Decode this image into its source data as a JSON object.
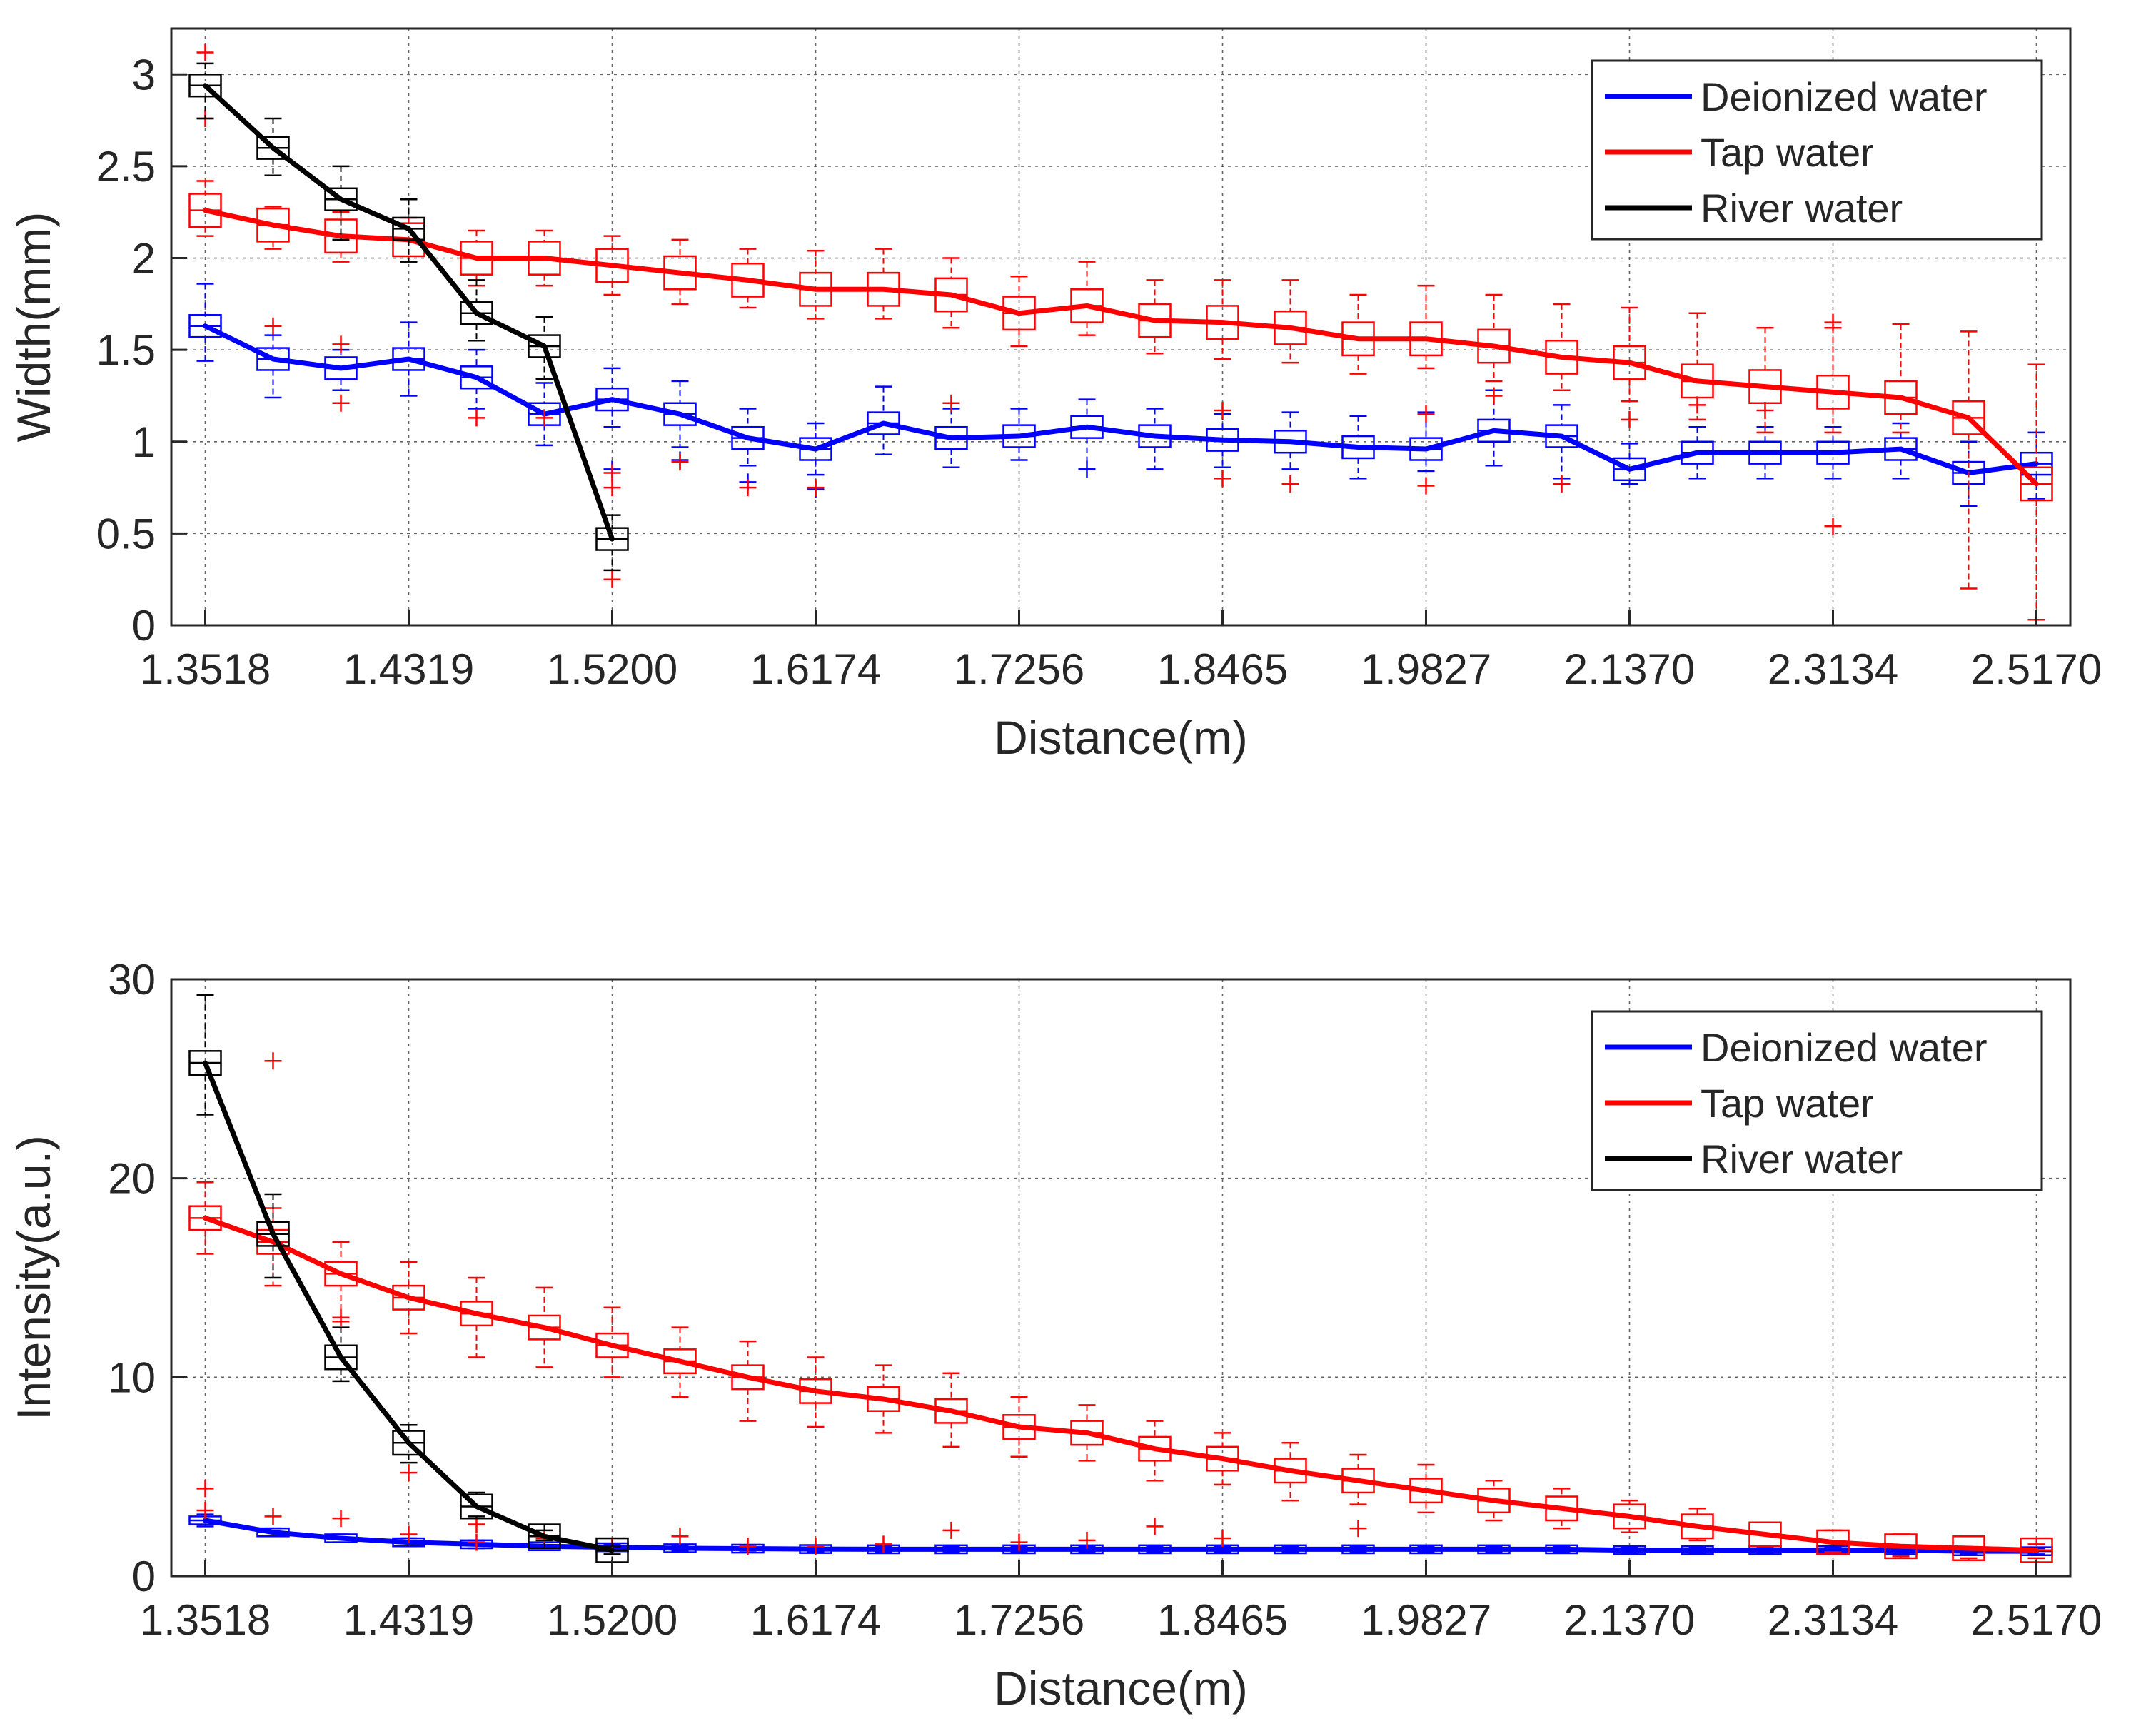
{
  "colors": {
    "deionized": "#0000ff",
    "tap": "#ff0000",
    "river": "#000000",
    "grid": "#262626",
    "axis": "#262626"
  },
  "chart_data": [
    {
      "type": "line",
      "title": "",
      "xlabel": "Distance(m)",
      "ylabel": "Width(mm)",
      "ylim": [
        0,
        3.25
      ],
      "yticks": [
        0,
        0.5,
        1,
        1.5,
        2,
        2.5,
        3
      ],
      "ytick_labels": [
        "0",
        "0.5",
        "1",
        "1.5",
        "2",
        "2.5",
        "3"
      ],
      "xlim_index": [
        -0.5,
        27.5
      ],
      "xtick_positions": [
        0,
        3,
        6,
        9,
        12,
        15,
        18,
        21,
        24,
        27
      ],
      "xtick_labels": [
        "1.3518",
        "1.4319",
        "1.5200",
        "1.6174",
        "1.7256",
        "1.8465",
        "1.9827",
        "2.1370",
        "2.3134",
        "2.5170"
      ],
      "grid": true,
      "legend": {
        "position": "top-right",
        "entries": [
          "Deionized water",
          "Tap water",
          "River water"
        ]
      },
      "series": [
        {
          "name": "Deionized water",
          "color_key": "deionized",
          "x_index": [
            0,
            1,
            2,
            3,
            4,
            5,
            6,
            7,
            8,
            9,
            10,
            11,
            12,
            13,
            14,
            15,
            16,
            17,
            18,
            19,
            20,
            21,
            22,
            23,
            24,
            25,
            26,
            27
          ],
          "values": [
            1.63,
            1.45,
            1.4,
            1.45,
            1.35,
            1.15,
            1.23,
            1.15,
            1.02,
            0.96,
            1.1,
            1.02,
            1.03,
            1.08,
            1.03,
            1.01,
            1.0,
            0.97,
            0.96,
            1.06,
            1.03,
            0.85,
            0.94,
            0.94,
            0.94,
            0.96,
            0.83,
            0.88
          ],
          "box_half_height": 0.06,
          "whisker_low": [
            1.44,
            1.24,
            1.28,
            1.25,
            1.18,
            0.98,
            1.08,
            0.97,
            0.87,
            0.82,
            0.93,
            0.86,
            0.9,
            0.85,
            0.85,
            0.86,
            0.85,
            0.8,
            0.84,
            0.87,
            0.8,
            0.77,
            0.8,
            0.8,
            0.8,
            0.8,
            0.65,
            0.69
          ],
          "whisker_high": [
            1.86,
            1.58,
            1.5,
            1.65,
            1.5,
            1.32,
            1.4,
            1.33,
            1.18,
            1.1,
            1.3,
            1.18,
            1.18,
            1.23,
            1.18,
            1.15,
            1.16,
            1.14,
            1.16,
            1.28,
            1.2,
            0.99,
            1.08,
            1.08,
            1.08,
            1.1,
            1.0,
            1.05
          ],
          "outliers": [
            [
              6,
              0.85
            ],
            [
              7,
              0.9
            ],
            [
              8,
              0.78
            ],
            [
              9,
              0.74
            ],
            [
              13,
              0.85
            ]
          ]
        },
        {
          "name": "Tap water",
          "color_key": "tap",
          "x_index": [
            0,
            1,
            2,
            3,
            4,
            5,
            6,
            7,
            8,
            9,
            10,
            11,
            12,
            13,
            14,
            15,
            16,
            17,
            18,
            19,
            20,
            21,
            22,
            23,
            24,
            25,
            26,
            27
          ],
          "values": [
            2.26,
            2.18,
            2.12,
            2.1,
            2.0,
            2.0,
            1.96,
            1.92,
            1.88,
            1.83,
            1.83,
            1.8,
            1.7,
            1.74,
            1.66,
            1.65,
            1.62,
            1.56,
            1.56,
            1.52,
            1.46,
            1.43,
            1.33,
            1.3,
            1.27,
            1.24,
            1.13,
            0.77
          ],
          "box_half_height": 0.09,
          "whisker_low": [
            2.12,
            2.05,
            1.98,
            1.98,
            1.85,
            1.85,
            1.8,
            1.75,
            1.73,
            1.67,
            1.67,
            1.62,
            1.52,
            1.58,
            1.48,
            1.45,
            1.43,
            1.37,
            1.4,
            1.33,
            1.28,
            1.22,
            1.12,
            1.05,
            1.05,
            1.05,
            0.2,
            0.03
          ],
          "whisker_high": [
            2.42,
            2.28,
            2.25,
            2.22,
            2.15,
            2.15,
            2.12,
            2.1,
            2.05,
            2.04,
            2.05,
            2.0,
            1.9,
            1.98,
            1.88,
            1.88,
            1.88,
            1.8,
            1.85,
            1.8,
            1.75,
            1.73,
            1.7,
            1.62,
            1.62,
            1.64,
            1.6,
            1.42
          ],
          "outliers": [
            [
              0,
              3.12
            ],
            [
              0,
              2.76
            ],
            [
              1,
              1.63
            ],
            [
              2,
              1.53
            ],
            [
              2,
              1.21
            ],
            [
              4,
              1.13
            ],
            [
              5,
              1.13
            ],
            [
              6,
              0.83
            ],
            [
              6,
              0.75
            ],
            [
              6,
              0.25
            ],
            [
              7,
              0.89
            ],
            [
              8,
              0.75
            ],
            [
              9,
              0.75
            ],
            [
              11,
              1.21
            ],
            [
              15,
              1.17
            ],
            [
              15,
              0.8
            ],
            [
              16,
              0.77
            ],
            [
              18,
              0.76
            ],
            [
              18,
              1.15
            ],
            [
              19,
              1.25
            ],
            [
              20,
              0.77
            ],
            [
              21,
              1.12
            ],
            [
              22,
              1.2
            ],
            [
              23,
              1.17
            ],
            [
              24,
              1.65
            ],
            [
              24,
              0.54
            ]
          ]
        },
        {
          "name": "River water",
          "color_key": "river",
          "x_index": [
            0,
            1,
            2,
            3,
            4,
            5,
            6
          ],
          "values": [
            2.94,
            2.6,
            2.32,
            2.16,
            1.7,
            1.52,
            0.47
          ],
          "box_half_height": 0.06,
          "whisker_low": [
            2.76,
            2.45,
            2.1,
            1.98,
            1.55,
            1.34,
            0.3
          ],
          "whisker_high": [
            3.06,
            2.76,
            2.5,
            2.32,
            1.88,
            1.68,
            0.6
          ],
          "outliers": []
        }
      ]
    },
    {
      "type": "line",
      "title": "",
      "xlabel": "Distance(m)",
      "ylabel": "Intensity(a.u.)",
      "ylim": [
        0,
        30
      ],
      "yticks": [
        0,
        10,
        20,
        30
      ],
      "ytick_labels": [
        "0",
        "10",
        "20",
        "30"
      ],
      "xlim_index": [
        -0.5,
        27.5
      ],
      "xtick_positions": [
        0,
        3,
        6,
        9,
        12,
        15,
        18,
        21,
        24,
        27
      ],
      "xtick_labels": [
        "1.3518",
        "1.4319",
        "1.5200",
        "1.6174",
        "1.7256",
        "1.8465",
        "1.9827",
        "2.1370",
        "2.3134",
        "2.5170"
      ],
      "grid": true,
      "legend": {
        "position": "top-right",
        "entries": [
          "Deionized water",
          "Tap water",
          "River water"
        ]
      },
      "series": [
        {
          "name": "Deionized water",
          "color_key": "deionized",
          "x_index": [
            0,
            1,
            2,
            3,
            4,
            5,
            6,
            7,
            8,
            9,
            10,
            11,
            12,
            13,
            14,
            15,
            16,
            17,
            18,
            19,
            20,
            21,
            22,
            23,
            24,
            25,
            26,
            27
          ],
          "values": [
            2.8,
            2.2,
            1.9,
            1.7,
            1.6,
            1.5,
            1.45,
            1.4,
            1.38,
            1.36,
            1.35,
            1.35,
            1.35,
            1.35,
            1.35,
            1.35,
            1.35,
            1.35,
            1.35,
            1.35,
            1.35,
            1.3,
            1.3,
            1.3,
            1.3,
            1.3,
            1.25,
            1.25
          ],
          "box_half_height": 0.2,
          "whisker_low": [
            2.5,
            2.0,
            1.7,
            1.5,
            1.4,
            1.3,
            1.3,
            1.25,
            1.2,
            1.2,
            1.2,
            1.2,
            1.2,
            1.2,
            1.2,
            1.2,
            1.2,
            1.2,
            1.2,
            1.2,
            1.2,
            1.15,
            1.15,
            1.15,
            1.15,
            1.15,
            1.1,
            1.1
          ],
          "whisker_high": [
            3.1,
            2.4,
            2.1,
            1.9,
            1.8,
            1.7,
            1.6,
            1.55,
            1.55,
            1.5,
            1.5,
            1.5,
            1.5,
            1.5,
            1.5,
            1.5,
            1.5,
            1.5,
            1.5,
            1.5,
            1.5,
            1.45,
            1.45,
            1.45,
            1.45,
            1.45,
            1.4,
            1.4
          ],
          "outliers": []
        },
        {
          "name": "Tap water",
          "color_key": "tap",
          "x_index": [
            0,
            1,
            2,
            3,
            4,
            5,
            6,
            7,
            8,
            9,
            10,
            11,
            12,
            13,
            14,
            15,
            16,
            17,
            18,
            19,
            20,
            21,
            22,
            23,
            24,
            25,
            26,
            27
          ],
          "values": [
            18.0,
            16.8,
            15.2,
            14.0,
            13.2,
            12.5,
            11.6,
            10.8,
            10.0,
            9.3,
            8.9,
            8.3,
            7.5,
            7.2,
            6.4,
            5.9,
            5.3,
            4.8,
            4.3,
            3.8,
            3.4,
            3.0,
            2.5,
            2.1,
            1.7,
            1.5,
            1.4,
            1.3
          ],
          "box_half_height": 0.6,
          "whisker_low": [
            16.2,
            14.6,
            12.8,
            12.2,
            11.0,
            10.5,
            10.0,
            9.0,
            7.8,
            7.5,
            7.2,
            6.5,
            6.0,
            5.8,
            4.8,
            4.6,
            3.8,
            3.6,
            3.2,
            2.8,
            2.4,
            2.2,
            1.8,
            1.5,
            1.2,
            1.0,
            0.9,
            0.9
          ],
          "whisker_high": [
            19.8,
            18.5,
            16.8,
            15.8,
            15.0,
            14.5,
            13.5,
            12.5,
            11.8,
            11.0,
            10.6,
            10.2,
            9.0,
            8.6,
            7.8,
            7.2,
            6.7,
            6.1,
            5.6,
            4.8,
            4.4,
            3.8,
            3.4,
            2.7,
            2.3,
            2.1,
            2.0,
            1.6
          ],
          "outliers": [
            [
              0,
              4.4
            ],
            [
              0,
              3.3
            ],
            [
              1,
              3.0
            ],
            [
              1,
              25.9
            ],
            [
              2,
              13.0
            ],
            [
              2,
              2.9
            ],
            [
              3,
              5.2
            ],
            [
              3,
              2.1
            ],
            [
              4,
              2.6
            ],
            [
              4,
              1.7
            ],
            [
              5,
              1.9
            ],
            [
              6,
              1.5
            ],
            [
              7,
              2.0
            ],
            [
              8,
              1.5
            ],
            [
              9,
              1.5
            ],
            [
              10,
              1.6
            ],
            [
              11,
              2.3
            ],
            [
              12,
              1.7
            ],
            [
              13,
              1.8
            ],
            [
              14,
              2.5
            ],
            [
              15,
              1.9
            ],
            [
              17,
              2.4
            ]
          ]
        },
        {
          "name": "River water",
          "color_key": "river",
          "x_index": [
            0,
            1,
            2,
            3,
            4,
            5,
            6
          ],
          "values": [
            25.8,
            17.2,
            11.0,
            6.7,
            3.5,
            2.0,
            1.3
          ],
          "box_half_height": 0.6,
          "whisker_low": [
            23.2,
            15.0,
            9.8,
            5.7,
            3.0,
            1.8,
            1.1
          ],
          "whisker_high": [
            29.2,
            19.2,
            12.5,
            7.6,
            4.2,
            2.3,
            1.5
          ],
          "outliers": []
        }
      ]
    }
  ]
}
